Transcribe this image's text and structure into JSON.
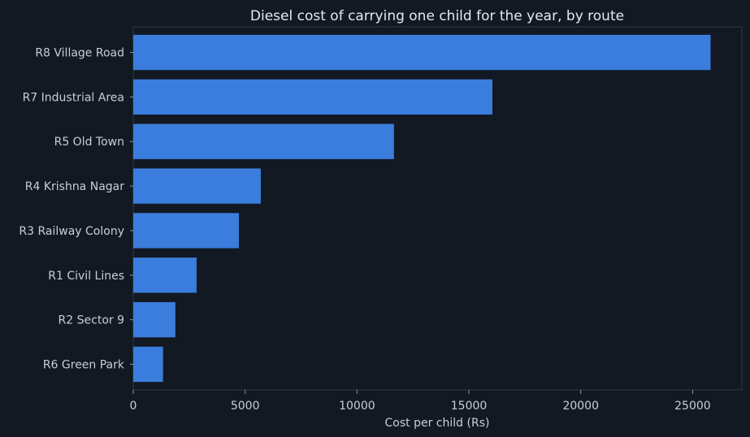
{
  "chart_data": {
    "type": "bar",
    "orientation": "horizontal",
    "title": "Diesel cost of carrying one child for the year, by route",
    "xlabel": "Cost per child (Rs)",
    "ylabel": "",
    "xlim": [
      0,
      27200
    ],
    "xticks": [
      0,
      5000,
      10000,
      15000,
      20000,
      25000
    ],
    "grid": false,
    "bar_color": "#3b7ddd",
    "background_color": "#121922",
    "categories": [
      "R8 Village Road",
      "R7 Industrial Area",
      "R5 Old Town",
      "R4 Krishna Nagar",
      "R3 Railway Colony",
      "R1 Civil Lines",
      "R2 Sector 9",
      "R6 Green Park"
    ],
    "values": [
      25800,
      16050,
      11650,
      5700,
      4720,
      2830,
      1880,
      1330
    ]
  }
}
